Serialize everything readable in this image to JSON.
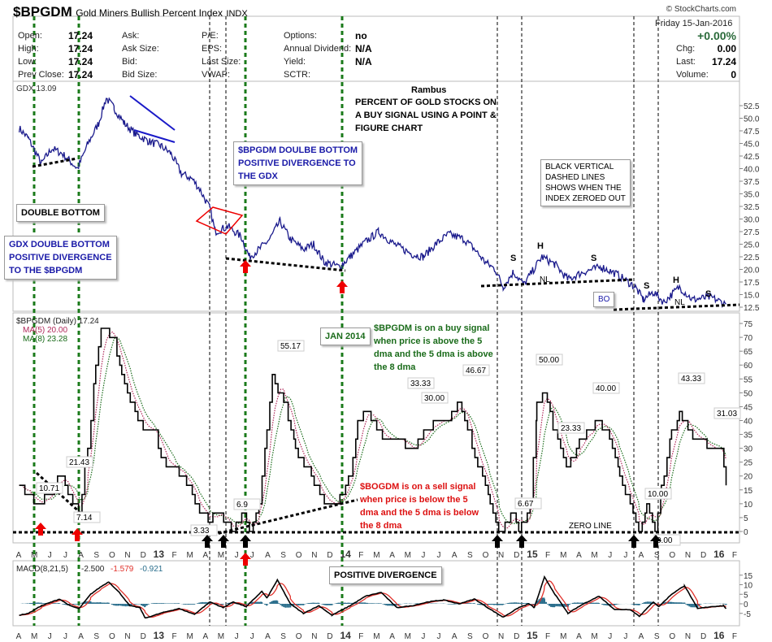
{
  "header": {
    "symbol": "$BPGDM",
    "name": "Gold Miners Bullish Percent Index",
    "exchange": "INDX",
    "watermark": "© StockCharts.com",
    "date": "Friday  15-Jan-2016",
    "pct_change": "+0.00%",
    "chg_label": "Chg:",
    "chg": "0.00",
    "last_label": "Last:",
    "last": "17.24",
    "volume_label": "Volume:",
    "volume": "0",
    "fields": [
      {
        "label": "Open:",
        "value": "17.24"
      },
      {
        "label": "High:",
        "value": "17.24"
      },
      {
        "label": "Low:",
        "value": "17.24"
      },
      {
        "label": "Prev Close:",
        "value": "17.24"
      },
      {
        "label": "Ask:",
        "value": ""
      },
      {
        "label": "Ask Size:",
        "value": ""
      },
      {
        "label": "Bid:",
        "value": ""
      },
      {
        "label": "Bid Size:",
        "value": ""
      },
      {
        "label": "P/E:",
        "value": ""
      },
      {
        "label": "EPS:",
        "value": ""
      },
      {
        "label": "Last Size:",
        "value": ""
      },
      {
        "label": "VWAP:",
        "value": ""
      },
      {
        "label": "Options:",
        "value": "no"
      },
      {
        "label": "Annual Dividend:",
        "value": "N/A"
      },
      {
        "label": "Yield:",
        "value": "N/A"
      },
      {
        "label": "SCTR:",
        "value": ""
      }
    ]
  },
  "annotations": {
    "rambus": "Rambus",
    "title_note": [
      "PERCENT OF GOLD STOCKS ON",
      "A BUY SIGNAL USING A POINT &",
      "FIGURE CHART"
    ],
    "bpgdm_double_bottom": [
      "$BPGDM DOULBE BOTTOM",
      "POSITIVE DIVERGENCE TO",
      "THE GDX"
    ],
    "double_bottom": "DOUBLE BOTTOM",
    "gdx_double_bottom": [
      "GDX DOUBLE BOTTOM",
      "POSITIVE DIVERGENCE",
      "TO THE $BPGDM"
    ],
    "vertical_lines_note": [
      "BLACK VERTICAL",
      "DASHED LINES",
      "SHOWS WHEN THE",
      "INDEX ZEROED OUT"
    ],
    "hs_labels": [
      "S",
      "H",
      "S",
      "NL",
      "S",
      "H",
      "S",
      "NL"
    ],
    "breakout": "BO",
    "jan2014": "JAN 2014",
    "buy_signal": [
      "$BPGDM is on a buy signal",
      "when price is above the 5",
      "dma and the 5 dma is above",
      "the 8 dma"
    ],
    "sell_signal": [
      "$BOGDM is on a sell signal",
      "when price is below the 5",
      "dma and the 5 dma is below",
      "the 8 dma"
    ],
    "zero_line": "ZERO LINE",
    "positive_divergence": "POSITIVE DIVERGENCE"
  },
  "colors": {
    "price": "#1a1a8c",
    "bp": "#000000",
    "ma5": "#b0285a",
    "ma8": "#1a6b1a",
    "macd": "#000000",
    "signal": "#e0302a",
    "hist": "#2a6e8c",
    "green_lines": "#1a7a1a",
    "buy_text": "#1a6b1a",
    "sell_text": "#dd1111",
    "blue_text": "#1a1aa8",
    "up": "#2a6a3a"
  },
  "chart_data": [
    {
      "type": "line",
      "legend": "GDX 13.09",
      "ylim": [
        12.5,
        52.5
      ],
      "yticks": [
        "12.5",
        "15.0",
        "17.5",
        "20.0",
        "22.5",
        "25.0",
        "27.5",
        "30.0",
        "32.5",
        "35.0",
        "37.5",
        "40.0",
        "42.5",
        "45.0",
        "47.5",
        "50.0",
        "52.5"
      ],
      "series": [
        {
          "name": "GDX",
          "points": [
            [
              "2012-04-02",
              48
            ],
            [
              "2012-04-20",
              46
            ],
            [
              "2012-05-15",
              41
            ],
            [
              "2012-06-05",
              44
            ],
            [
              "2012-06-25",
              43
            ],
            [
              "2012-07-25",
              40
            ],
            [
              "2012-08-15",
              45
            ],
            [
              "2012-09-05",
              49
            ],
            [
              "2012-09-20",
              54
            ],
            [
              "2012-10-05",
              52
            ],
            [
              "2012-10-25",
              49
            ],
            [
              "2012-11-15",
              47
            ],
            [
              "2012-12-10",
              45.5
            ],
            [
              "2013-01-05",
              44.5
            ],
            [
              "2013-01-25",
              43
            ],
            [
              "2013-02-15",
              39
            ],
            [
              "2013-03-05",
              38
            ],
            [
              "2013-03-20",
              36
            ],
            [
              "2013-04-10",
              32
            ],
            [
              "2013-04-20",
              27.5
            ],
            [
              "2013-05-15",
              28.5
            ],
            [
              "2013-06-10",
              26.5
            ],
            [
              "2013-06-26",
              22.5
            ],
            [
              "2013-07-15",
              24
            ],
            [
              "2013-08-05",
              26
            ],
            [
              "2013-08-25",
              29.5
            ],
            [
              "2013-09-15",
              26
            ],
            [
              "2013-10-10",
              24
            ],
            [
              "2013-10-30",
              25
            ],
            [
              "2013-11-20",
              21.5
            ],
            [
              "2013-12-20",
              20.5
            ],
            [
              "2014-01-10",
              22.5
            ],
            [
              "2014-02-10",
              25.5
            ],
            [
              "2014-03-05",
              27.5
            ],
            [
              "2014-04-05",
              25
            ],
            [
              "2014-05-10",
              23
            ],
            [
              "2014-06-01",
              22.5
            ],
            [
              "2014-06-25",
              25
            ],
            [
              "2014-07-20",
              27
            ],
            [
              "2014-08-20",
              26
            ],
            [
              "2014-09-10",
              24
            ],
            [
              "2014-09-30",
              21.5
            ],
            [
              "2014-10-20",
              20
            ],
            [
              "2014-11-05",
              16.5
            ],
            [
              "2014-11-25",
              19.5
            ],
            [
              "2014-12-15",
              17
            ],
            [
              "2015-01-20",
              22.5
            ],
            [
              "2015-02-15",
              21
            ],
            [
              "2015-03-10",
              18
            ],
            [
              "2015-04-10",
              19.5
            ],
            [
              "2015-05-15",
              20.5
            ],
            [
              "2015-06-15",
              19
            ],
            [
              "2015-07-20",
              16.5
            ],
            [
              "2015-08-05",
              14
            ],
            [
              "2015-08-25",
              15.5
            ],
            [
              "2015-09-15",
              13.5
            ],
            [
              "2015-10-15",
              16.5
            ],
            [
              "2015-11-10",
              14
            ],
            [
              "2015-12-15",
              14.5
            ],
            [
              "2016-01-15",
              13.09
            ]
          ]
        }
      ]
    },
    {
      "type": "line",
      "legend": [
        "$BPGDM (Daily) 17.24",
        "MA(5) 20.00",
        "MA(8) 23.28"
      ],
      "ylim": [
        0,
        75
      ],
      "yticks": [
        "0",
        "5",
        "10",
        "15",
        "20",
        "25",
        "30",
        "35",
        "40",
        "45",
        "50",
        "55",
        "60",
        "65",
        "70",
        "75"
      ],
      "series": [
        {
          "name": "$BPGDM",
          "points": [
            [
              "2012-04-02",
              17
            ],
            [
              "2012-04-25",
              12
            ],
            [
              "2012-05-10",
              10.71
            ],
            [
              "2012-06-05",
              13
            ],
            [
              "2012-06-20",
              21.43
            ],
            [
              "2012-07-10",
              13
            ],
            [
              "2012-07-28",
              7.14
            ],
            [
              "2012-08-15",
              30
            ],
            [
              "2012-08-30",
              60
            ],
            [
              "2012-09-10",
              73
            ],
            [
              "2012-10-05",
              70
            ],
            [
              "2012-10-20",
              55
            ],
            [
              "2012-11-10",
              45
            ],
            [
              "2012-12-01",
              38
            ],
            [
              "2012-12-25",
              35
            ],
            [
              "2013-01-10",
              25
            ],
            [
              "2013-02-05",
              22
            ],
            [
              "2013-02-25",
              18
            ],
            [
              "2013-03-20",
              7
            ],
            [
              "2013-04-10",
              3.33
            ],
            [
              "2013-04-20",
              7
            ],
            [
              "2013-05-10",
              3.33
            ],
            [
              "2013-05-25",
              0
            ],
            [
              "2013-06-15",
              6.9
            ],
            [
              "2013-06-28",
              0
            ],
            [
              "2013-07-15",
              10
            ],
            [
              "2013-07-30",
              35
            ],
            [
              "2013-08-10",
              55.17
            ],
            [
              "2013-09-05",
              45
            ],
            [
              "2013-09-25",
              30
            ],
            [
              "2013-10-20",
              22
            ],
            [
              "2013-11-15",
              12
            ],
            [
              "2013-12-15",
              10
            ],
            [
              "2014-01-10",
              20
            ],
            [
              "2014-01-25",
              40
            ],
            [
              "2014-02-15",
              43
            ],
            [
              "2014-03-15",
              33
            ],
            [
              "2014-04-10",
              33.33
            ],
            [
              "2014-05-10",
              30
            ],
            [
              "2014-06-15",
              38
            ],
            [
              "2014-07-15",
              40
            ],
            [
              "2014-08-10",
              46.67
            ],
            [
              "2014-08-30",
              35
            ],
            [
              "2014-09-20",
              22
            ],
            [
              "2014-10-10",
              10
            ],
            [
              "2014-10-28",
              0
            ],
            [
              "2014-11-25",
              6.67
            ],
            [
              "2014-12-05",
              0
            ],
            [
              "2014-12-28",
              10
            ],
            [
              "2015-01-10",
              45
            ],
            [
              "2015-01-25",
              50
            ],
            [
              "2015-02-15",
              35
            ],
            [
              "2015-03-10",
              23.33
            ],
            [
              "2015-04-05",
              33
            ],
            [
              "2015-05-05",
              40
            ],
            [
              "2015-05-25",
              35
            ],
            [
              "2015-06-20",
              20
            ],
            [
              "2015-07-10",
              10
            ],
            [
              "2015-07-28",
              0
            ],
            [
              "2015-08-12",
              10
            ],
            [
              "2015-08-28",
              0
            ],
            [
              "2015-09-10",
              15
            ],
            [
              "2015-09-30",
              35
            ],
            [
              "2015-10-15",
              43.33
            ],
            [
              "2015-11-05",
              35
            ],
            [
              "2015-12-10",
              31.03
            ],
            [
              "2016-01-05",
              30
            ],
            [
              "2016-01-15",
              17.24
            ]
          ]
        }
      ],
      "data_labels": [
        "21.43",
        "10.71",
        "7.14",
        "3.33",
        "6.9",
        "55.17",
        "33.33",
        "30.00",
        "46.67",
        "6.67",
        "50.00",
        "23.33",
        "40.00",
        "10.00",
        "0.00",
        "43.33",
        "31.03"
      ]
    },
    {
      "type": "line",
      "legend": [
        "MACD(8,21,5)",
        "-2.500",
        "-1.579",
        "-0.921"
      ],
      "ylim": [
        -7.5,
        15
      ],
      "yticks": [
        "-5",
        "0",
        "5",
        "10",
        "15"
      ],
      "series": [
        {
          "name": "MACD",
          "points": [
            [
              "2012-04-02",
              -6
            ],
            [
              "2012-04-20",
              -5
            ],
            [
              "2012-05-15",
              -1
            ],
            [
              "2012-06-05",
              1
            ],
            [
              "2012-06-20",
              2.5
            ],
            [
              "2012-07-10",
              -1
            ],
            [
              "2012-07-28",
              -2.5
            ],
            [
              "2012-08-20",
              5
            ],
            [
              "2012-09-10",
              9
            ],
            [
              "2012-09-25",
              11.5
            ],
            [
              "2012-10-15",
              6
            ],
            [
              "2012-11-05",
              -1
            ],
            [
              "2012-11-25",
              -2
            ],
            [
              "2012-12-05",
              -7.5
            ],
            [
              "2013-01-10",
              -4.5
            ],
            [
              "2013-02-10",
              -2.5
            ],
            [
              "2013-03-10",
              -5.5
            ],
            [
              "2013-04-10",
              1
            ],
            [
              "2013-05-05",
              -2
            ],
            [
              "2013-05-25",
              1
            ],
            [
              "2013-06-20",
              -1.5
            ],
            [
              "2013-07-20",
              6.5
            ],
            [
              "2013-07-30",
              3
            ],
            [
              "2013-08-20",
              12.5
            ],
            [
              "2013-09-15",
              0
            ],
            [
              "2013-10-10",
              -5
            ],
            [
              "2013-11-10",
              -1
            ],
            [
              "2013-12-05",
              -6
            ],
            [
              "2014-01-10",
              -1
            ],
            [
              "2014-02-10",
              4
            ],
            [
              "2014-03-10",
              6
            ],
            [
              "2014-04-10",
              -2
            ],
            [
              "2014-05-10",
              -1
            ],
            [
              "2014-06-10",
              1
            ],
            [
              "2014-07-10",
              2
            ],
            [
              "2014-08-10",
              0
            ],
            [
              "2014-09-10",
              2.5
            ],
            [
              "2014-10-05",
              -2
            ],
            [
              "2014-11-05",
              -7
            ],
            [
              "2014-12-05",
              -2
            ],
            [
              "2014-12-25",
              0
            ],
            [
              "2015-01-05",
              -2
            ],
            [
              "2015-01-25",
              14
            ],
            [
              "2015-02-15",
              5
            ],
            [
              "2015-03-10",
              -5
            ],
            [
              "2015-04-10",
              0
            ],
            [
              "2015-05-10",
              4
            ],
            [
              "2015-06-10",
              -3
            ],
            [
              "2015-07-10",
              -3
            ],
            [
              "2015-07-28",
              -6.5
            ],
            [
              "2015-08-25",
              1
            ],
            [
              "2015-09-05",
              -1.5
            ],
            [
              "2015-09-30",
              5
            ],
            [
              "2015-10-25",
              9.5
            ],
            [
              "2015-11-20",
              -2.5
            ],
            [
              "2015-12-15",
              -1.5
            ],
            [
              "2016-01-10",
              -1
            ],
            [
              "2016-01-15",
              -2.5
            ]
          ]
        }
      ]
    }
  ],
  "x_axis": {
    "ticks": [
      "A",
      "M",
      "J",
      "J",
      "A",
      "S",
      "O",
      "N",
      "D",
      "13",
      "F",
      "M",
      "A",
      "M",
      "J",
      "J",
      "A",
      "S",
      "O",
      "N",
      "D",
      "14",
      "F",
      "M",
      "A",
      "M",
      "J",
      "J",
      "A",
      "S",
      "O",
      "N",
      "D",
      "15",
      "F",
      "M",
      "A",
      "M",
      "J",
      "J",
      "A",
      "S",
      "O",
      "N",
      "D",
      "16",
      "F"
    ]
  }
}
